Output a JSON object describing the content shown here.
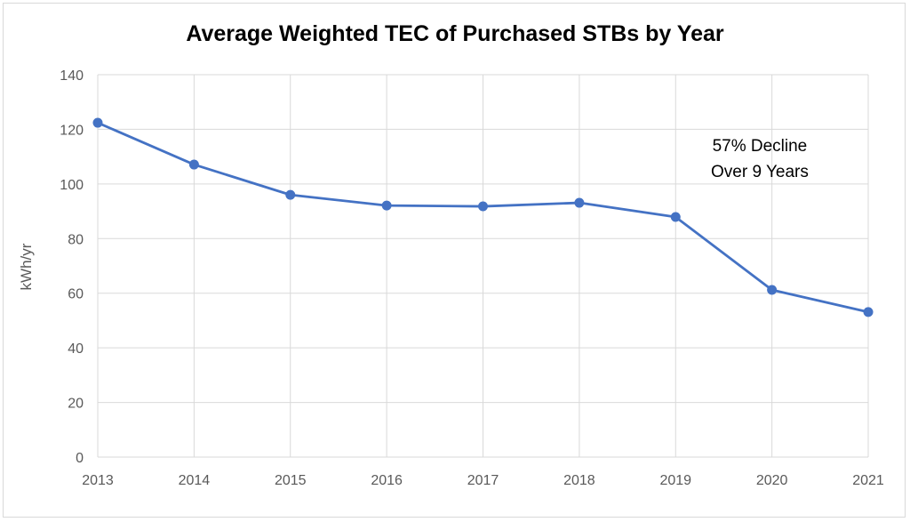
{
  "chart_data": {
    "type": "line",
    "title": "Average Weighted TEC of Purchased STBs by Year",
    "xlabel": "",
    "ylabel": "kWh/yr",
    "categories": [
      "2013",
      "2014",
      "2015",
      "2016",
      "2017",
      "2018",
      "2019",
      "2020",
      "2021"
    ],
    "series": [
      {
        "values": [
          122.4,
          107.1,
          96.0,
          92.1,
          91.8,
          93.1,
          87.9,
          61.2,
          53.1
        ],
        "color": "#4472c4"
      }
    ],
    "ylim": [
      0,
      140
    ],
    "yticks": [
      0,
      20,
      40,
      60,
      80,
      100,
      120,
      140
    ],
    "grid": true,
    "legend": "none",
    "annotation": [
      "57% Decline",
      "Over 9 Years"
    ]
  }
}
